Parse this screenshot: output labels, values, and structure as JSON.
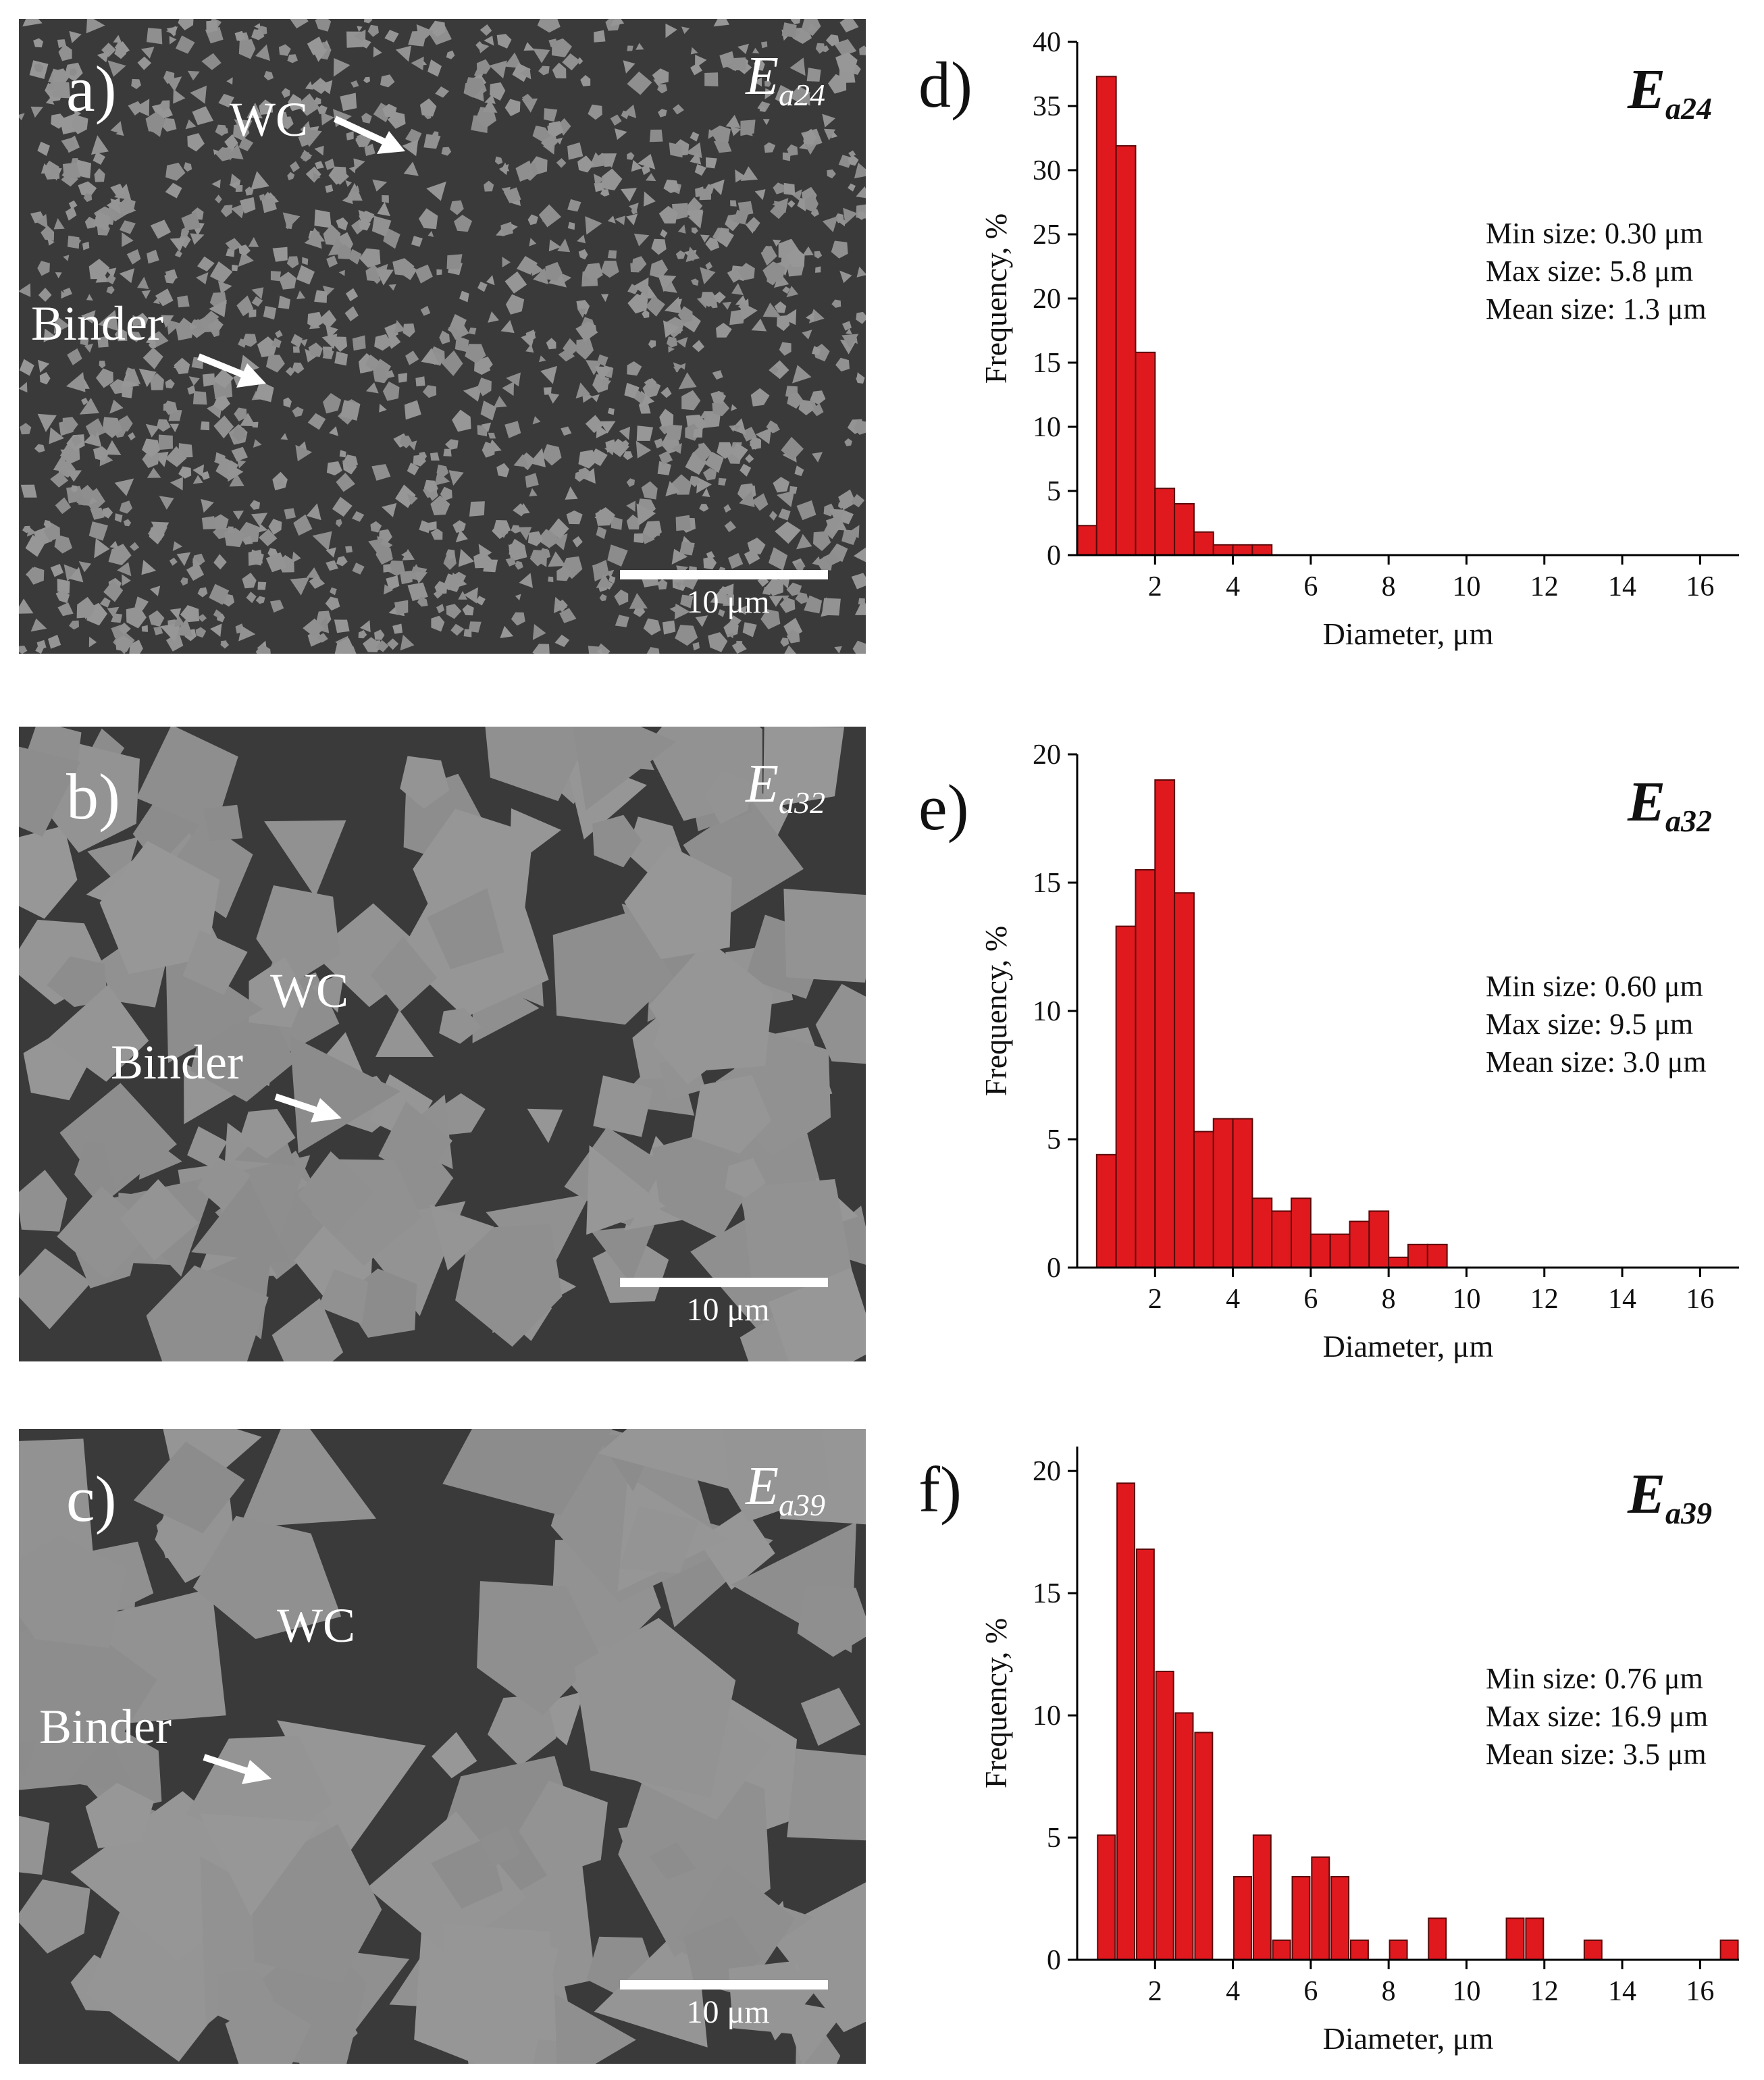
{
  "panels": [
    {
      "label": "a)",
      "sample_prefix": "E",
      "sample_sub": "a24",
      "wc_label": "WC",
      "binder_label": "Binder",
      "scale_text": "10 μm",
      "texture": "fine"
    },
    {
      "label": "b)",
      "sample_prefix": "E",
      "sample_sub": "a32",
      "wc_label": "WC",
      "binder_label": "Binder",
      "scale_text": "10 μm",
      "texture": "medium"
    },
    {
      "label": "c)",
      "sample_prefix": "E",
      "sample_sub": "a39",
      "wc_label": "WC",
      "binder_label": "Binder",
      "scale_text": "10 μm",
      "texture": "coarse"
    }
  ],
  "chart_data": [
    {
      "type": "bar",
      "panel_label": "d)",
      "title_prefix": "E",
      "title_sub": "a24",
      "xlabel": "Diameter, μm",
      "ylabel": "Frequency, %",
      "xlim": [
        0,
        17
      ],
      "ylim": [
        0,
        40
      ],
      "xticks": [
        "2",
        "4",
        "6",
        "8",
        "10",
        "12",
        "14",
        "16"
      ],
      "yticks": [
        "0",
        "5",
        "10",
        "15",
        "20",
        "25",
        "30",
        "35",
        "40"
      ],
      "bar_width": 0.5,
      "bar_color": "#e0191f",
      "bar_centers": [
        0.25,
        0.75,
        1.25,
        1.75,
        2.25,
        2.75,
        3.25,
        3.75,
        4.25,
        4.75
      ],
      "values": [
        2.3,
        37.3,
        31.9,
        15.8,
        5.2,
        4.0,
        1.8,
        0.8,
        0.8,
        0.8
      ],
      "annotations": [
        "Min size: 0.30 μm",
        "Max size: 5.8 μm",
        "Mean size: 1.3 μm"
      ]
    },
    {
      "type": "bar",
      "panel_label": "e)",
      "title_prefix": "E",
      "title_sub": "a32",
      "xlabel": "Diameter, μm",
      "ylabel": "Frequency, %",
      "xlim": [
        0,
        17
      ],
      "ylim": [
        0,
        20
      ],
      "xticks": [
        "2",
        "4",
        "6",
        "8",
        "10",
        "12",
        "14",
        "16"
      ],
      "yticks": [
        "0",
        "5",
        "10",
        "15",
        "20"
      ],
      "bar_width": 0.5,
      "bar_color": "#e0191f",
      "bar_centers": [
        0.75,
        1.25,
        1.75,
        2.25,
        2.75,
        3.25,
        3.75,
        4.25,
        4.75,
        5.25,
        5.75,
        6.25,
        6.75,
        7.25,
        7.75,
        8.25,
        8.75,
        9.25
      ],
      "values": [
        4.4,
        13.3,
        15.5,
        19.0,
        14.6,
        5.3,
        5.8,
        5.8,
        2.7,
        2.2,
        2.7,
        1.3,
        1.3,
        1.8,
        2.2,
        0.4,
        0.9,
        0.9
      ],
      "annotations": [
        "Min size: 0.60 μm",
        "Max size: 9.5 μm",
        "Mean size: 3.0 μm"
      ]
    },
    {
      "type": "bar",
      "panel_label": "f)",
      "title_prefix": "E",
      "title_sub": "a39",
      "xlabel": "Diameter, μm",
      "ylabel": "Frequency, %",
      "xlim": [
        0,
        17
      ],
      "ylim": [
        0,
        21
      ],
      "xticks": [
        "2",
        "4",
        "6",
        "8",
        "10",
        "12",
        "14",
        "16"
      ],
      "yticks": [
        "0",
        "5",
        "10",
        "15",
        "20"
      ],
      "bar_width": 0.45,
      "bar_color": "#e0191f",
      "bar_centers": [
        0.75,
        1.25,
        1.75,
        2.25,
        2.75,
        3.25,
        4.25,
        4.75,
        5.25,
        5.75,
        6.25,
        6.75,
        7.25,
        8.25,
        9.25,
        11.25,
        11.75,
        13.25,
        16.75
      ],
      "values": [
        5.1,
        19.5,
        16.8,
        11.8,
        10.1,
        9.3,
        3.4,
        5.1,
        0.8,
        3.4,
        4.2,
        3.4,
        0.8,
        0.8,
        1.7,
        1.7,
        1.7,
        0.8,
        0.8
      ],
      "annotations": [
        "Min size: 0.76 μm",
        "Max size: 16.9 μm",
        "Mean size: 3.5 μm"
      ]
    }
  ]
}
